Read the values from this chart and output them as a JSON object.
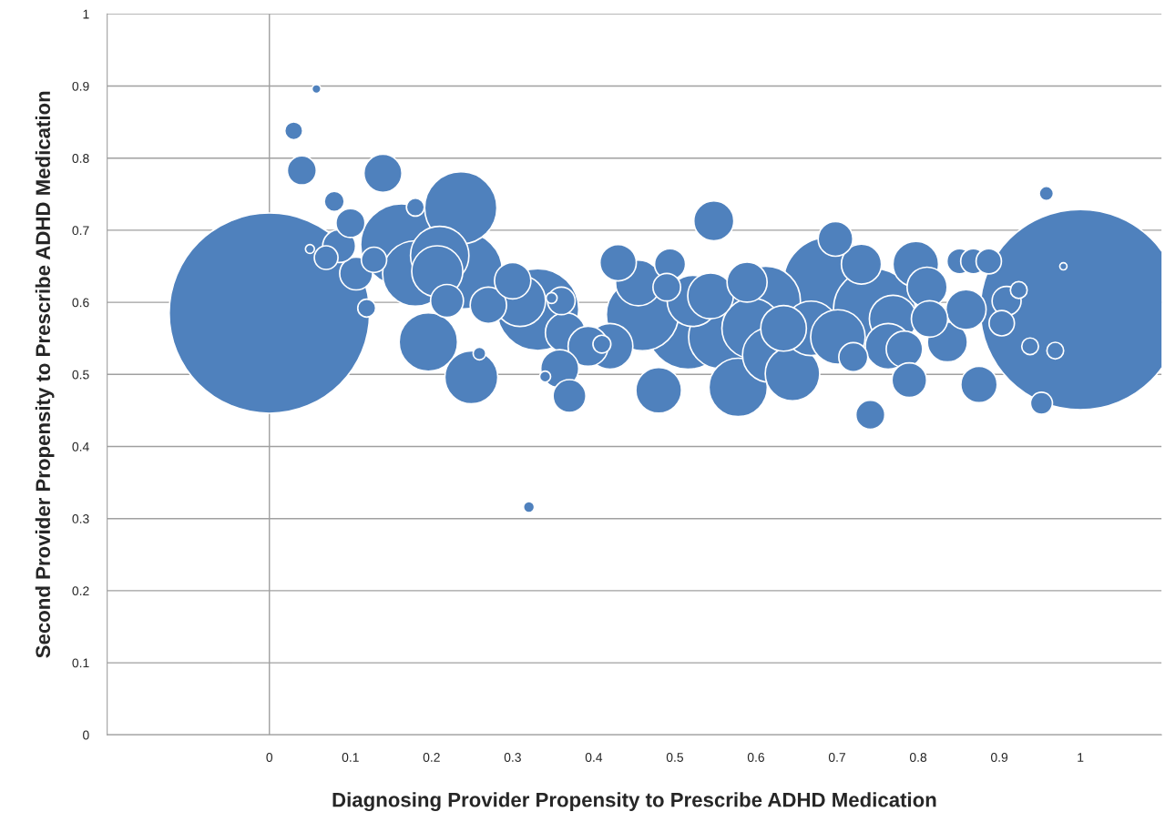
{
  "chart_data": {
    "type": "bubble",
    "xlabel": "Diagnosing Provider Propensity to Prescribe ADHD Medication",
    "ylabel": "Second Provider Propensity to Prescribe ADHD Medication",
    "xlim": [
      -0.2,
      1.1
    ],
    "ylim": [
      0,
      1
    ],
    "xticks": [
      0,
      0.1,
      0.2,
      0.3,
      0.4,
      0.5,
      0.6,
      0.7,
      0.8,
      0.9,
      1
    ],
    "yticks": [
      0,
      0.1,
      0.2,
      0.3,
      0.4,
      0.5,
      0.6,
      0.7,
      0.8,
      0.9,
      1
    ],
    "grid": "y",
    "ref_lines": [
      {
        "axis": "x",
        "value": 0,
        "color": "#a0a0a0"
      }
    ],
    "series": [
      {
        "color": "#4f81bd",
        "x": [
          0,
          1,
          0.058,
          0.03,
          0.04,
          0.08,
          0.14,
          0.236,
          0.163,
          0.18,
          0.107,
          0.1,
          0.086,
          0.05,
          0.07,
          0.129,
          0.18,
          0.21,
          0.207,
          0.24,
          0.12,
          0.196,
          0.219,
          0.249,
          0.259,
          0.27,
          0.309,
          0.3,
          0.331,
          0.348,
          0.34,
          0.358,
          0.37,
          0.32,
          0.365,
          0.36,
          0.393,
          0.41,
          0.42,
          0.43,
          0.455,
          0.46,
          0.48,
          0.49,
          0.494,
          0.516,
          0.522,
          0.548,
          0.544,
          0.556,
          0.578,
          0.589,
          0.595,
          0.612,
          0.617,
          0.645,
          0.634,
          0.668,
          0.69,
          0.698,
          0.701,
          0.72,
          0.73,
          0.746,
          0.741,
          0.763,
          0.769,
          0.783,
          0.789,
          0.797,
          0.811,
          0.836,
          0.814,
          0.851,
          0.868,
          0.887,
          0.859,
          0.875,
          0.903,
          0.909,
          0.924,
          0.938,
          0.952,
          0.969,
          0.958,
          0.979
        ],
        "values": [
          0.585,
          0.59,
          0.896,
          0.838,
          0.783,
          0.74,
          0.779,
          0.731,
          0.68,
          0.64,
          0.64,
          0.71,
          0.678,
          0.674,
          0.662,
          0.659,
          0.732,
          0.665,
          0.643,
          0.644,
          0.592,
          0.545,
          0.602,
          0.496,
          0.529,
          0.596,
          0.602,
          0.63,
          0.59,
          0.606,
          0.497,
          0.508,
          0.47,
          0.316,
          0.558,
          0.602,
          0.539,
          0.542,
          0.539,
          0.655,
          0.627,
          0.583,
          0.478,
          0.621,
          0.653,
          0.564,
          0.602,
          0.713,
          0.609,
          0.552,
          0.482,
          0.628,
          0.564,
          0.602,
          0.527,
          0.501,
          0.564,
          0.564,
          0.627,
          0.688,
          0.552,
          0.524,
          0.653,
          0.59,
          0.444,
          0.539,
          0.577,
          0.535,
          0.492,
          0.653,
          0.621,
          0.545,
          0.577,
          0.657,
          0.657,
          0.657,
          0.59,
          0.486,
          0.571,
          0.602,
          0.617,
          0.539,
          0.46,
          0.533,
          0.751,
          0.65
        ],
        "sizes": [
          1,
          1,
          0.002,
          0.008,
          0.021,
          0.01,
          0.036,
          0.13,
          0.167,
          0.107,
          0.027,
          0.021,
          0.027,
          0.002,
          0.014,
          0.016,
          0.008,
          0.085,
          0.065,
          0.146,
          0.008,
          0.085,
          0.027,
          0.07,
          0.004,
          0.033,
          0.065,
          0.033,
          0.167,
          0.003,
          0.003,
          0.036,
          0.027,
          0.003,
          0.04,
          0.019,
          0.04,
          0.008,
          0.052,
          0.033,
          0.052,
          0.13,
          0.052,
          0.019,
          0.024,
          0.167,
          0.065,
          0.04,
          0.052,
          0.1,
          0.085,
          0.04,
          0.09,
          0.12,
          0.074,
          0.074,
          0.052,
          0.074,
          0.207,
          0.03,
          0.074,
          0.021,
          0.04,
          0.167,
          0.021,
          0.052,
          0.056,
          0.033,
          0.03,
          0.052,
          0.04,
          0.04,
          0.033,
          0.016,
          0.016,
          0.016,
          0.04,
          0.033,
          0.016,
          0.021,
          0.007,
          0.007,
          0.012,
          0.007,
          0.005,
          0.0013
        ]
      }
    ]
  }
}
